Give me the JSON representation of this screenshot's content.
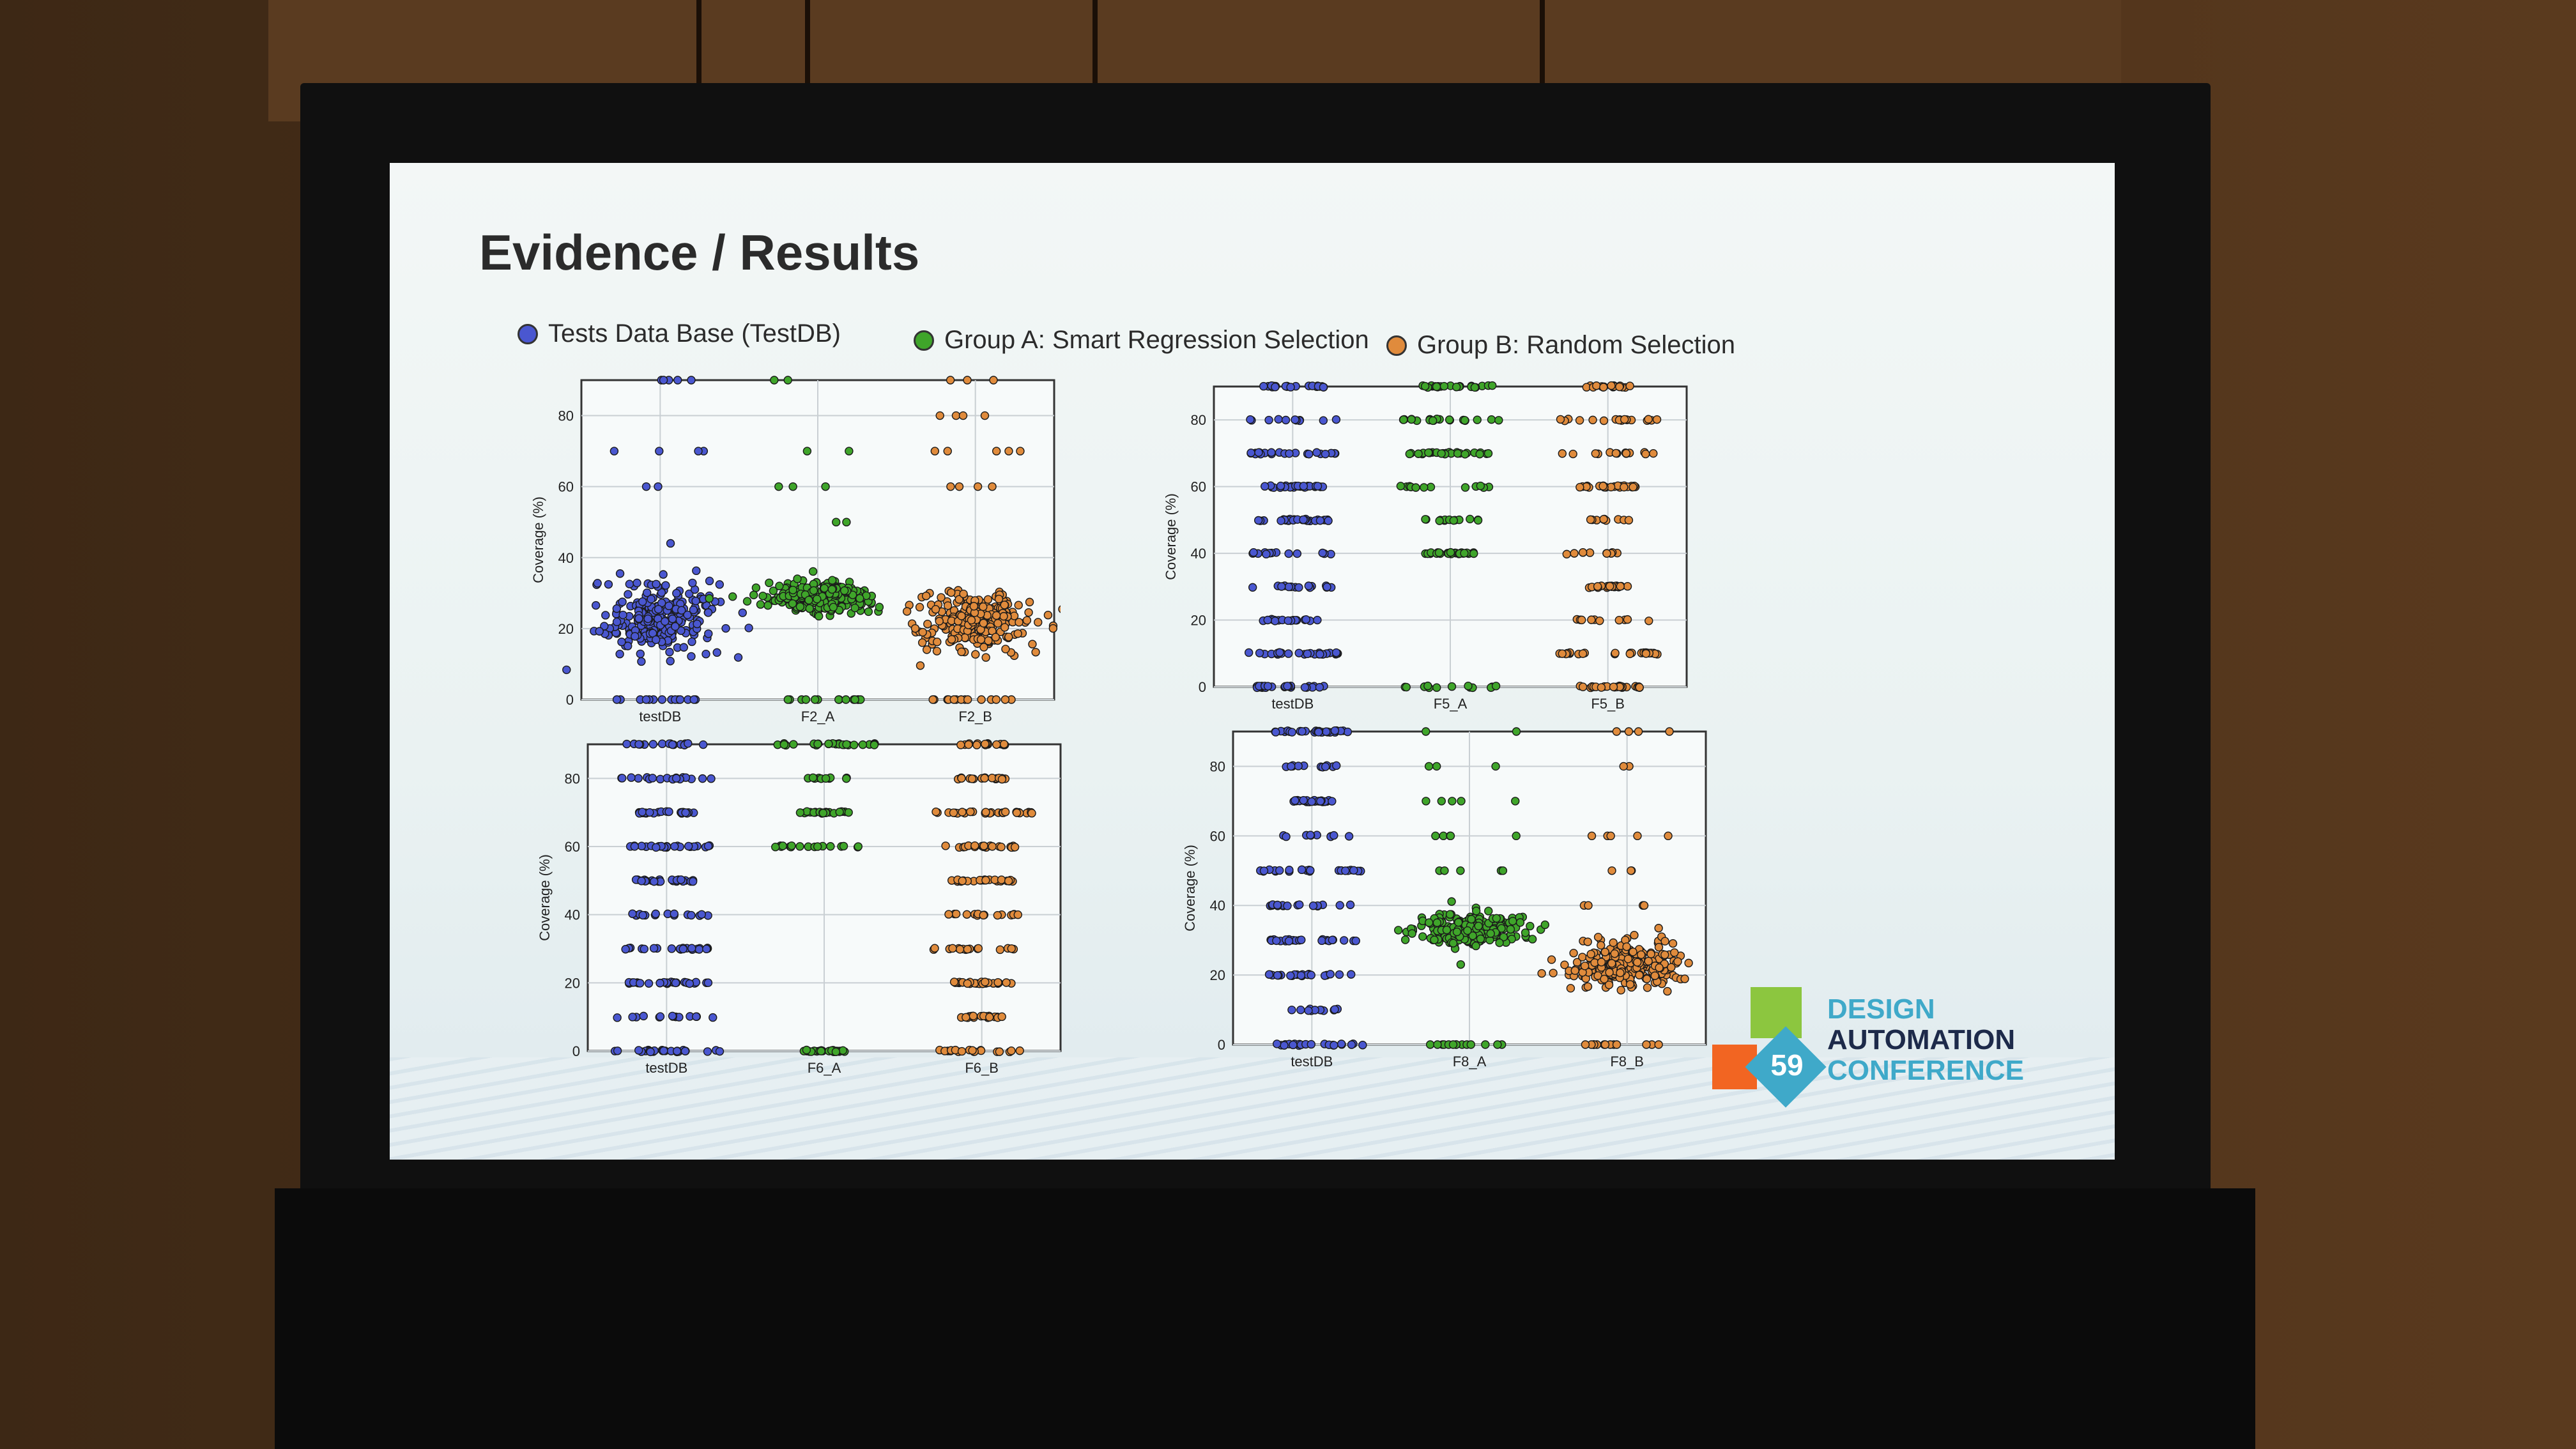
{
  "slide": {
    "title": "Evidence / Results",
    "legend": [
      {
        "label": "Tests Data Base (TestDB)",
        "color": "#4a57d0"
      },
      {
        "label": "Group A: Smart Regression Selection",
        "color": "#3fa52a"
      },
      {
        "label": "Group B: Random Selection",
        "color": "#e08b3c"
      }
    ],
    "logo": {
      "number": "59",
      "line1": "DESIGN",
      "line2": "AUTOMATION",
      "line3": "CONFERENCE"
    }
  },
  "chart_data": [
    {
      "type": "scatter",
      "ylabel": "Coverage (%)",
      "ylim": [
        0,
        90
      ],
      "yticks": [
        0,
        20,
        40,
        60,
        80
      ],
      "grid": true,
      "categories": [
        "testDB",
        "F2_A",
        "F2_B"
      ],
      "series": [
        {
          "category": "testDB",
          "color": "#4a57d0",
          "pattern": "cloud",
          "center": 23,
          "spread": 12,
          "extra_levels": [
            0,
            60,
            70,
            90
          ]
        },
        {
          "category": "F2_A",
          "color": "#3fa52a",
          "pattern": "cloud",
          "center": 29,
          "spread": 5,
          "extra_levels": [
            0,
            50,
            60,
            70,
            90
          ]
        },
        {
          "category": "F2_B",
          "color": "#e08b3c",
          "pattern": "cloud",
          "center": 22,
          "spread": 9,
          "extra_levels": [
            0,
            60,
            70,
            80,
            90
          ]
        }
      ]
    },
    {
      "type": "scatter",
      "ylabel": "Coverage (%)",
      "ylim": [
        0,
        90
      ],
      "yticks": [
        0,
        20,
        40,
        60,
        80
      ],
      "grid": true,
      "categories": [
        "testDB",
        "F5_A",
        "F5_B"
      ],
      "series": [
        {
          "category": "testDB",
          "color": "#4a57d0",
          "pattern": "levels",
          "levels": [
            0,
            10,
            20,
            30,
            40,
            50,
            60,
            70,
            80,
            90
          ]
        },
        {
          "category": "F5_A",
          "color": "#3fa52a",
          "pattern": "levels",
          "levels": [
            0,
            40,
            50,
            60,
            70,
            80,
            90
          ]
        },
        {
          "category": "F5_B",
          "color": "#e08b3c",
          "pattern": "levels",
          "levels": [
            0,
            10,
            20,
            30,
            40,
            50,
            60,
            70,
            80,
            90
          ]
        }
      ]
    },
    {
      "type": "scatter",
      "ylabel": "Coverage (%)",
      "ylim": [
        0,
        90
      ],
      "yticks": [
        0,
        20,
        40,
        60,
        80
      ],
      "grid": true,
      "categories": [
        "testDB",
        "F6_A",
        "F6_B"
      ],
      "series": [
        {
          "category": "testDB",
          "color": "#4a57d0",
          "pattern": "levels",
          "levels": [
            0,
            10,
            20,
            30,
            40,
            50,
            60,
            70,
            80,
            90
          ]
        },
        {
          "category": "F6_A",
          "color": "#3fa52a",
          "pattern": "levels",
          "levels": [
            0,
            60,
            70,
            80,
            90
          ]
        },
        {
          "category": "F6_B",
          "color": "#e08b3c",
          "pattern": "levels",
          "levels": [
            0,
            10,
            20,
            30,
            40,
            50,
            60,
            70,
            80,
            90
          ]
        }
      ]
    },
    {
      "type": "scatter",
      "ylabel": "Coverage (%)",
      "ylim": [
        0,
        90
      ],
      "yticks": [
        0,
        20,
        40,
        60,
        80
      ],
      "grid": true,
      "categories": [
        "testDB",
        "F8_A",
        "F8_B"
      ],
      "series": [
        {
          "category": "testDB",
          "color": "#4a57d0",
          "pattern": "levels",
          "levels": [
            0,
            10,
            20,
            30,
            40,
            50,
            60,
            70,
            80,
            90
          ]
        },
        {
          "category": "F8_A",
          "color": "#3fa52a",
          "pattern": "cloud",
          "center": 33,
          "spread": 5,
          "extra_levels": [
            0,
            50,
            60,
            70,
            80,
            90
          ]
        },
        {
          "category": "F8_B",
          "color": "#e08b3c",
          "pattern": "cloud",
          "center": 23,
          "spread": 7,
          "extra_levels": [
            0,
            40,
            50,
            60,
            80,
            90
          ]
        }
      ]
    }
  ]
}
